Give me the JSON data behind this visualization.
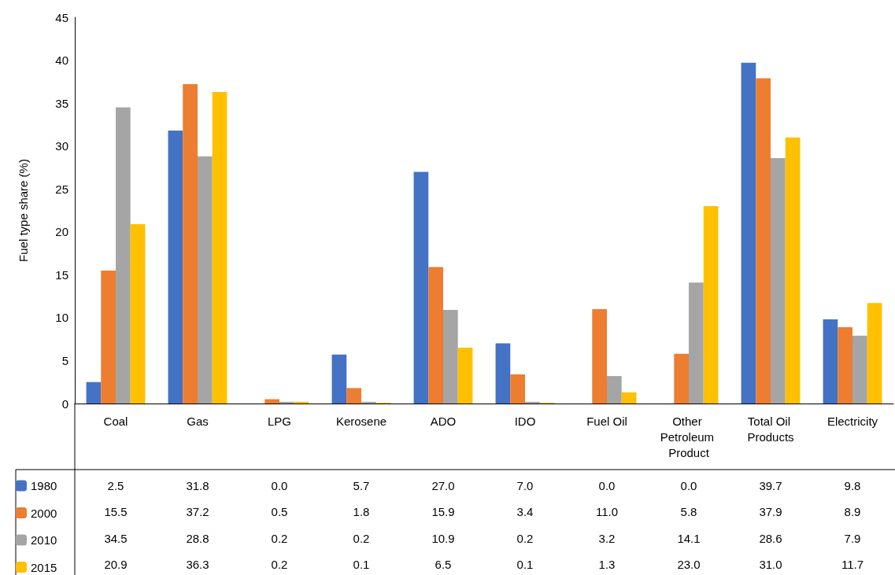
{
  "chart_data": {
    "type": "bar",
    "ylabel": "Fuel type share (%)",
    "categories": [
      "Coal",
      "Gas",
      "LPG",
      "Kerosene",
      "ADO",
      "IDO",
      "Fuel Oil",
      "Other Petroleum Product",
      "Total Oil Products",
      "Electricity"
    ],
    "series": [
      {
        "name": "1980",
        "color": "#4472c4",
        "values": [
          2.5,
          31.8,
          0.0,
          5.7,
          27.0,
          7.0,
          0.0,
          0.0,
          39.7,
          9.8
        ],
        "value_labels": [
          "2.5",
          "31.8",
          "0.0",
          "5.7",
          "27.0",
          "7.0",
          "0.0",
          "0.0",
          "39.7",
          "9.8"
        ]
      },
      {
        "name": "2000",
        "color": "#ed7d31",
        "values": [
          15.5,
          37.2,
          0.5,
          1.8,
          15.9,
          3.4,
          11.0,
          5.8,
          37.9,
          8.9
        ],
        "value_labels": [
          "15.5",
          "37.2",
          "0.5",
          "1.8",
          "15.9",
          "3.4",
          "11.0",
          "5.8",
          "37.9",
          "8.9"
        ]
      },
      {
        "name": "2010",
        "color": "#a5a5a5",
        "values": [
          34.5,
          28.8,
          0.2,
          0.2,
          10.9,
          0.2,
          3.2,
          14.1,
          28.6,
          7.9
        ],
        "value_labels": [
          "34.5",
          "28.8",
          "0.2",
          "0.2",
          "10.9",
          "0.2",
          "3.2",
          "14.1",
          "28.6",
          "7.9"
        ]
      },
      {
        "name": "2015",
        "color": "#ffc000",
        "values": [
          20.9,
          36.3,
          0.2,
          0.1,
          6.5,
          0.1,
          1.3,
          23.0,
          31.0,
          11.7
        ],
        "value_labels": [
          "20.9",
          "36.3",
          "0.2",
          "0.1",
          "6.5",
          "0.1",
          "1.3",
          "23.0",
          "31.0",
          "11.7"
        ]
      }
    ],
    "ylim": [
      0,
      45
    ],
    "yticks": [
      0,
      5,
      10,
      15,
      20,
      25,
      30,
      35,
      40,
      45
    ],
    "grid": false,
    "legend": "bottom left"
  }
}
